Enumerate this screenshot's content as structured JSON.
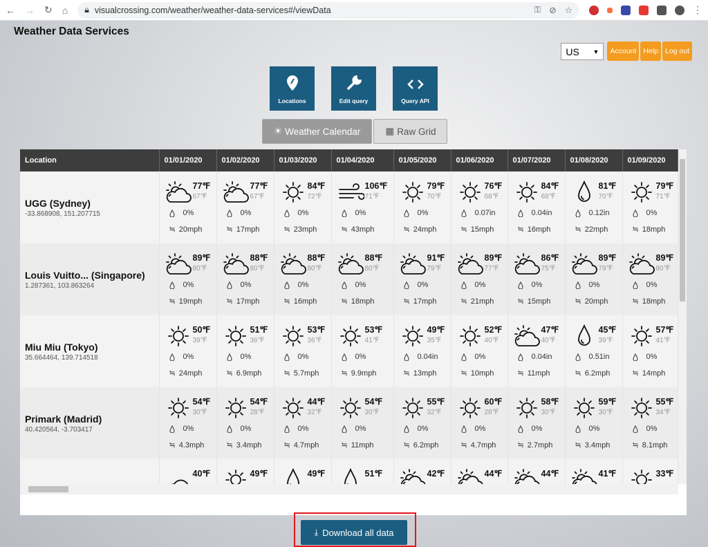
{
  "browser": {
    "url": "visualcrossing.com/weather/weather-data-services#/viewData"
  },
  "app": {
    "title": "Weather Data Services",
    "unit_select": "US",
    "buttons": [
      "Account",
      "Help",
      "Log out"
    ]
  },
  "tiles": [
    {
      "label": "Locations",
      "icon": "map-pin-icon"
    },
    {
      "label": "Edit query",
      "icon": "wrench-icon"
    },
    {
      "label": "Query API",
      "icon": "code-icon"
    }
  ],
  "view_toggle": {
    "calendar": "Weather Calendar",
    "grid": "Raw Grid",
    "active": "calendar"
  },
  "table": {
    "location_header": "Location",
    "dates": [
      "01/01/2020",
      "01/02/2020",
      "01/03/2020",
      "01/04/2020",
      "01/05/2020",
      "01/06/2020",
      "01/07/2020",
      "01/08/2020",
      "01/09/2020"
    ],
    "rows": [
      {
        "name": "UGG (Sydney)",
        "coords": "-33.868908, 151.207715",
        "days": [
          {
            "icon": "partly-cloudy",
            "hi": "77℉",
            "lo": "67℉",
            "precip": "0%",
            "wind": "20mph"
          },
          {
            "icon": "partly-cloudy",
            "hi": "77℉",
            "lo": "67℉",
            "precip": "0%",
            "wind": "17mph"
          },
          {
            "icon": "clear",
            "hi": "84℉",
            "lo": "72℉",
            "precip": "0%",
            "wind": "23mph"
          },
          {
            "icon": "wind",
            "hi": "106℉",
            "lo": "71℉",
            "precip": "0%",
            "wind": "43mph"
          },
          {
            "icon": "clear",
            "hi": "79℉",
            "lo": "70℉",
            "precip": "0%",
            "wind": "24mph"
          },
          {
            "icon": "clear",
            "hi": "76℉",
            "lo": "68℉",
            "precip": "0.07in",
            "wind": "15mph"
          },
          {
            "icon": "clear",
            "hi": "84℉",
            "lo": "68℉",
            "precip": "0.04in",
            "wind": "16mph"
          },
          {
            "icon": "rain",
            "hi": "81℉",
            "lo": "70℉",
            "precip": "0.12in",
            "wind": "22mph"
          },
          {
            "icon": "clear",
            "hi": "79℉",
            "lo": "71℉",
            "precip": "0%",
            "wind": "18mph"
          }
        ]
      },
      {
        "name": "Louis Vuitto... (Singapore)",
        "coords": "1.287361, 103.863264",
        "days": [
          {
            "icon": "partly-cloudy",
            "hi": "89℉",
            "lo": "80℉",
            "precip": "0%",
            "wind": "19mph"
          },
          {
            "icon": "partly-cloudy",
            "hi": "88℉",
            "lo": "80℉",
            "precip": "0%",
            "wind": "17mph"
          },
          {
            "icon": "partly-cloudy",
            "hi": "88℉",
            "lo": "80℉",
            "precip": "0%",
            "wind": "16mph"
          },
          {
            "icon": "partly-cloudy",
            "hi": "88℉",
            "lo": "80℉",
            "precip": "0%",
            "wind": "18mph"
          },
          {
            "icon": "partly-cloudy",
            "hi": "91℉",
            "lo": "79℉",
            "precip": "0%",
            "wind": "17mph"
          },
          {
            "icon": "partly-cloudy",
            "hi": "89℉",
            "lo": "77℉",
            "precip": "0%",
            "wind": "21mph"
          },
          {
            "icon": "partly-cloudy",
            "hi": "86℉",
            "lo": "75℉",
            "precip": "0%",
            "wind": "15mph"
          },
          {
            "icon": "partly-cloudy",
            "hi": "89℉",
            "lo": "79℉",
            "precip": "0%",
            "wind": "20mph"
          },
          {
            "icon": "partly-cloudy",
            "hi": "89℉",
            "lo": "80℉",
            "precip": "0%",
            "wind": "18mph"
          }
        ]
      },
      {
        "name": "Miu Miu (Tokyo)",
        "coords": "35.664464, 139.714518",
        "days": [
          {
            "icon": "clear",
            "hi": "50℉",
            "lo": "39℉",
            "precip": "0%",
            "wind": "24mph"
          },
          {
            "icon": "clear",
            "hi": "51℉",
            "lo": "36℉",
            "precip": "0%",
            "wind": "6.9mph"
          },
          {
            "icon": "clear",
            "hi": "53℉",
            "lo": "36℉",
            "precip": "0%",
            "wind": "5.7mph"
          },
          {
            "icon": "clear",
            "hi": "53℉",
            "lo": "41℉",
            "precip": "0%",
            "wind": "9.9mph"
          },
          {
            "icon": "clear",
            "hi": "49℉",
            "lo": "35℉",
            "precip": "0.04in",
            "wind": "13mph"
          },
          {
            "icon": "clear",
            "hi": "52℉",
            "lo": "40℉",
            "precip": "0%",
            "wind": "10mph"
          },
          {
            "icon": "partly-cloudy",
            "hi": "47℉",
            "lo": "40℉",
            "precip": "0.04in",
            "wind": "11mph"
          },
          {
            "icon": "rain",
            "hi": "45℉",
            "lo": "39℉",
            "precip": "0.51in",
            "wind": "6.2mph"
          },
          {
            "icon": "clear",
            "hi": "57℉",
            "lo": "41℉",
            "precip": "0%",
            "wind": "14mph"
          }
        ]
      },
      {
        "name": "Primark (Madrid)",
        "coords": "40.420564, -3.703417",
        "days": [
          {
            "icon": "clear",
            "hi": "54℉",
            "lo": "30℉",
            "precip": "0%",
            "wind": "4.3mph"
          },
          {
            "icon": "clear",
            "hi": "54℉",
            "lo": "28℉",
            "precip": "0%",
            "wind": "3.4mph"
          },
          {
            "icon": "clear",
            "hi": "44℉",
            "lo": "32℉",
            "precip": "0%",
            "wind": "4.7mph"
          },
          {
            "icon": "clear",
            "hi": "54℉",
            "lo": "30℉",
            "precip": "0%",
            "wind": "11mph"
          },
          {
            "icon": "clear",
            "hi": "55℉",
            "lo": "32℉",
            "precip": "0%",
            "wind": "6.2mph"
          },
          {
            "icon": "clear",
            "hi": "60℉",
            "lo": "28℉",
            "precip": "0%",
            "wind": "4.7mph"
          },
          {
            "icon": "clear",
            "hi": "58℉",
            "lo": "30℉",
            "precip": "0%",
            "wind": "2.7mph"
          },
          {
            "icon": "clear",
            "hi": "59℉",
            "lo": "30℉",
            "precip": "0%",
            "wind": "3.4mph"
          },
          {
            "icon": "clear",
            "hi": "55℉",
            "lo": "34℉",
            "precip": "0%",
            "wind": "8.1mph"
          }
        ]
      },
      {
        "name": "",
        "coords": "",
        "days": [
          {
            "icon": "cloudy",
            "hi": "40℉"
          },
          {
            "icon": "clear",
            "hi": "49℉"
          },
          {
            "icon": "rain",
            "hi": "49℉"
          },
          {
            "icon": "rain",
            "hi": "51℉"
          },
          {
            "icon": "partly-cloudy",
            "hi": "42℉"
          },
          {
            "icon": "partly-cloudy",
            "hi": "44℉"
          },
          {
            "icon": "partly-cloudy",
            "hi": "44℉"
          },
          {
            "icon": "partly-cloudy",
            "hi": "41℉"
          },
          {
            "icon": "clear",
            "hi": "33℉"
          }
        ]
      }
    ]
  },
  "download": {
    "label": "Download all data"
  },
  "colors": {
    "primary": "#1b5d80",
    "orange": "#f39c1f",
    "header": "#3d3d3d",
    "highlight": "#e3161b"
  }
}
